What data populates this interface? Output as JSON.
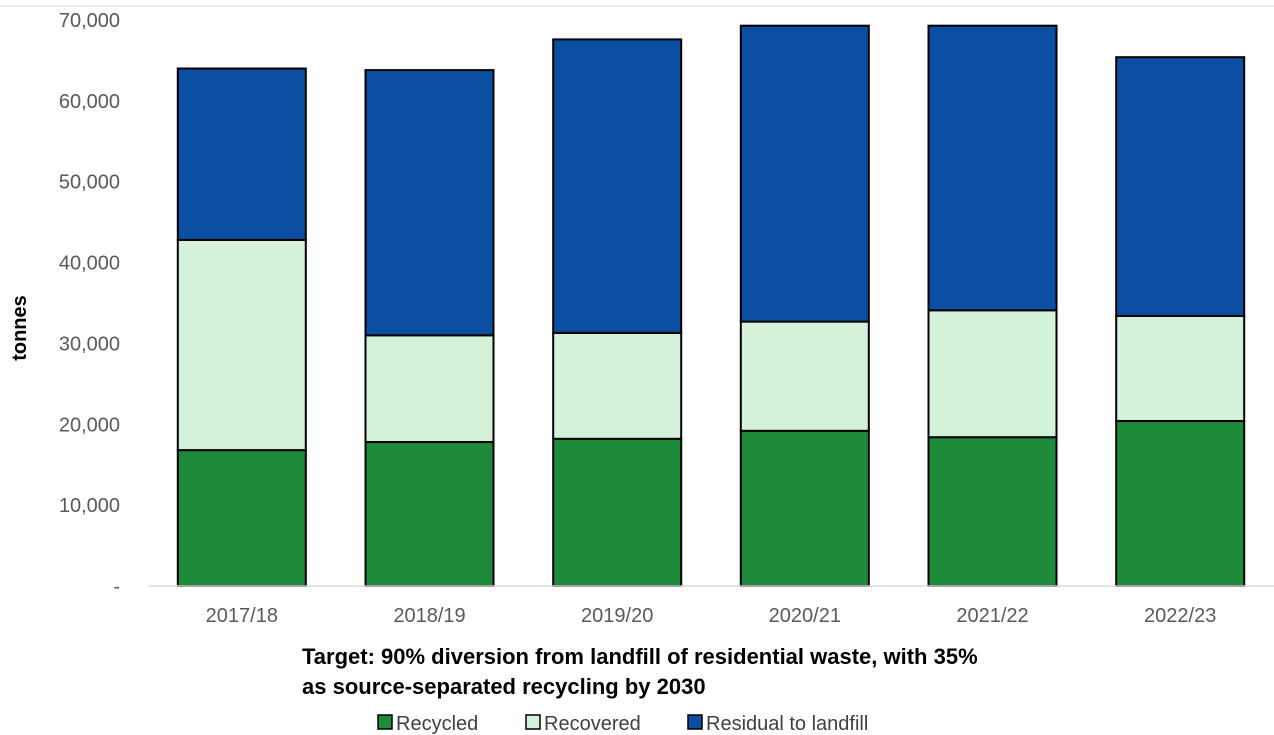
{
  "chart_data": {
    "type": "bar",
    "stacked": true,
    "categories": [
      "2017/18",
      "2018/19",
      "2019/20",
      "2020/21",
      "2021/22",
      "2022/23"
    ],
    "series": [
      {
        "name": "Recycled",
        "color": "#1e8b3a",
        "values": [
          16800,
          17800,
          18200,
          19200,
          18400,
          20400
        ]
      },
      {
        "name": "Recovered",
        "color": "#d4f2d9",
        "values": [
          26000,
          13200,
          13100,
          13500,
          15700,
          13000
        ]
      },
      {
        "name": "Residual to landfill",
        "color": "#0b4fa3",
        "values": [
          21200,
          32800,
          36300,
          36600,
          35200,
          32000
        ]
      }
    ],
    "ylabel": "tonnes",
    "xlabel_lines": [
      "Target: 90% diversion from landfill of residential waste, with 35%",
      "as source-separated recycling by 2030"
    ],
    "ylim": [
      0,
      70000
    ],
    "yticks": [
      0,
      10000,
      20000,
      30000,
      40000,
      50000,
      60000,
      70000
    ],
    "ytick_labels": [
      "-",
      "10,000",
      "20,000",
      "30,000",
      "40,000",
      "50,000",
      "60,000",
      "70,000"
    ],
    "grid": false,
    "legend_position": "bottom"
  }
}
